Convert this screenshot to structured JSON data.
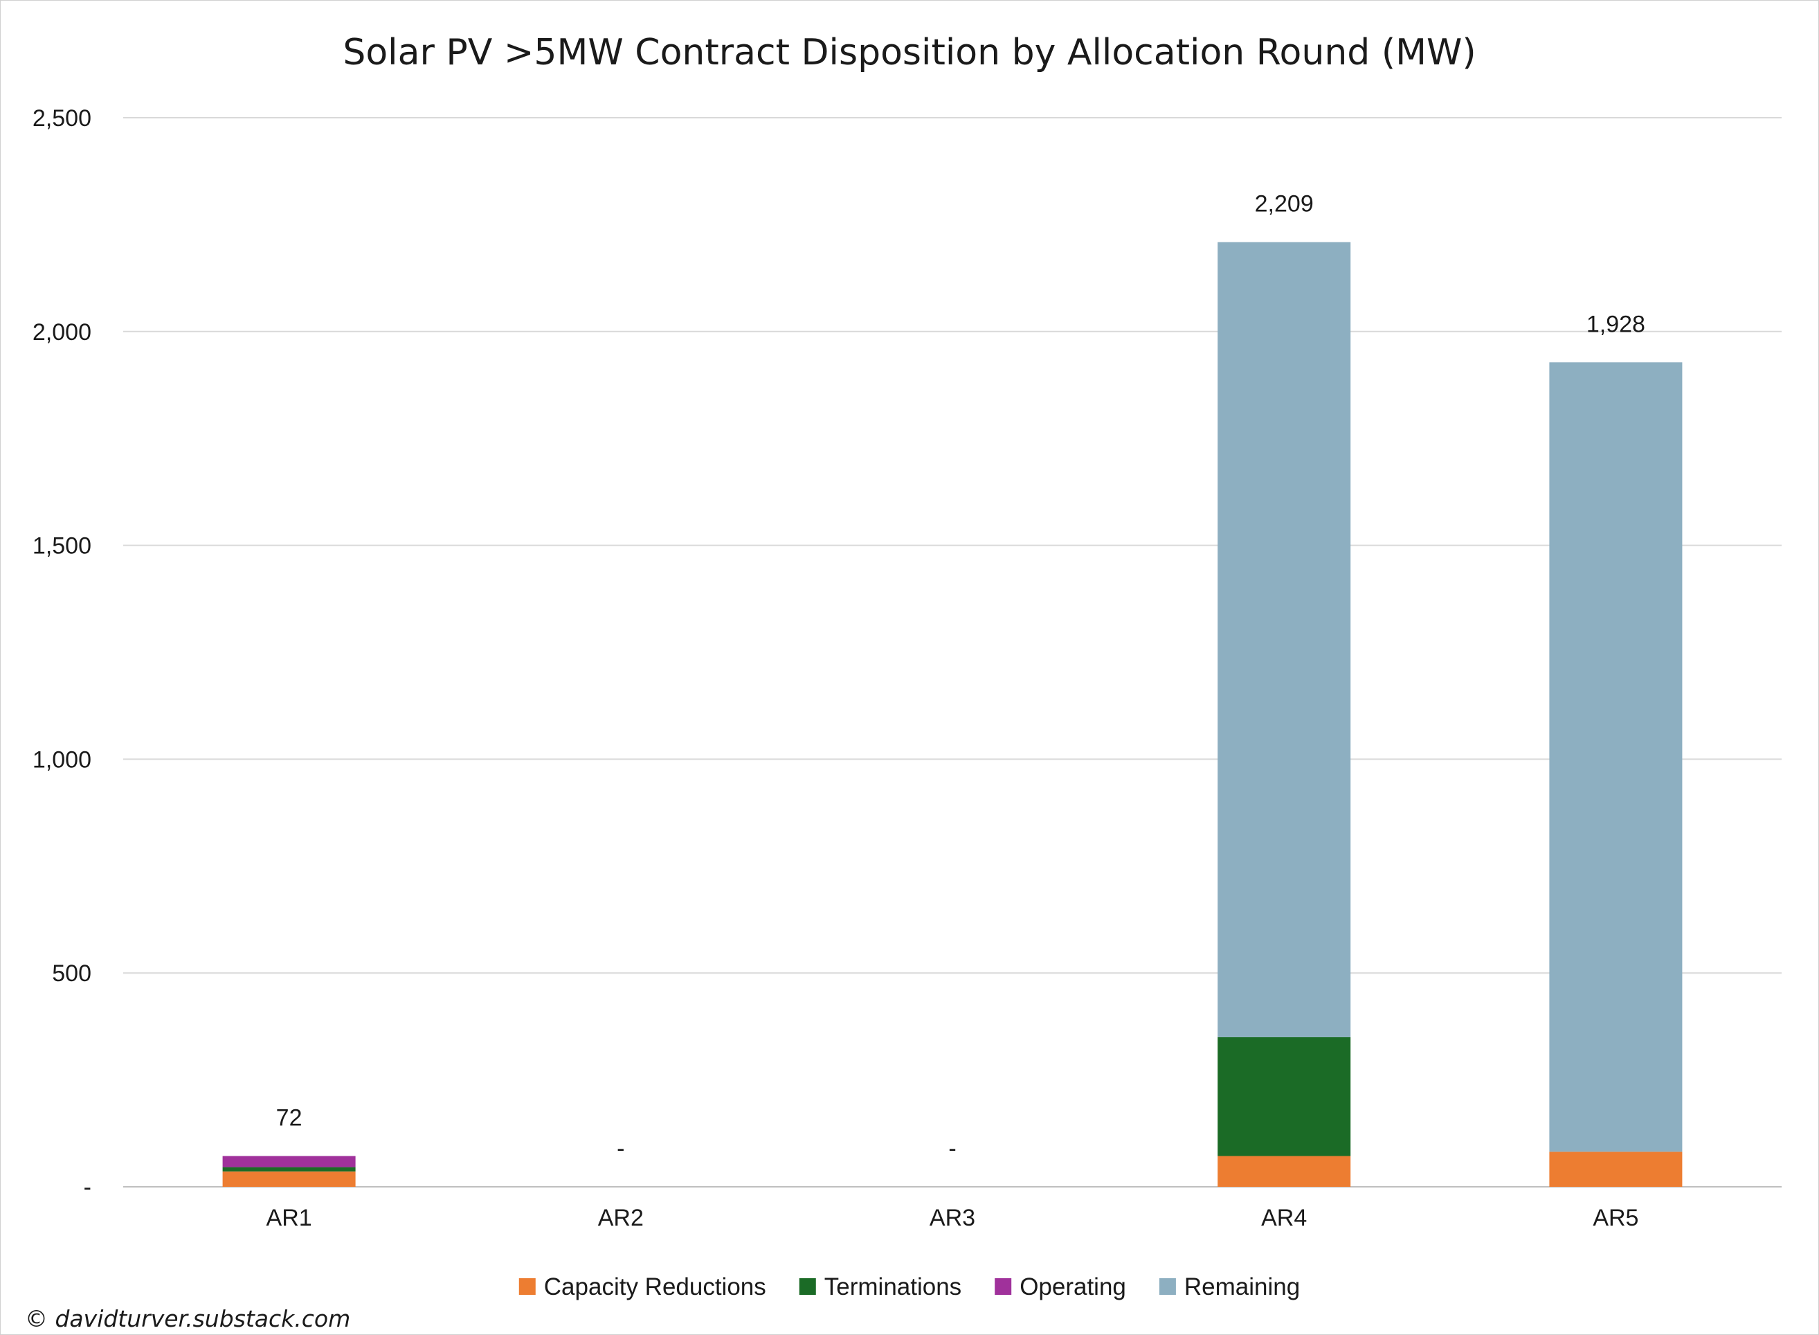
{
  "chart_data": {
    "type": "bar",
    "stacked": true,
    "title": "Solar PV >5MW Contract Disposition by Allocation Round (MW)",
    "categories": [
      "AR1",
      "AR2",
      "AR3",
      "AR4",
      "AR5"
    ],
    "series": [
      {
        "name": "Capacity Reductions",
        "color": "#ED7D31",
        "values": [
          36,
          0,
          0,
          72,
          82
        ]
      },
      {
        "name": "Terminations",
        "color": "#1B6B26",
        "values": [
          10,
          0,
          0,
          278,
          0
        ]
      },
      {
        "name": "Operating",
        "color": "#A0319B",
        "values": [
          26,
          0,
          0,
          0,
          0
        ]
      },
      {
        "name": "Remaining",
        "color": "#8DAFC1",
        "values": [
          0,
          0,
          0,
          1859,
          1846
        ]
      }
    ],
    "total_labels": [
      "72",
      "-",
      "-",
      "2,209",
      "1,928"
    ],
    "ylim": [
      0,
      2500
    ],
    "yticks": [
      0,
      500,
      1000,
      1500,
      2000,
      2500
    ],
    "ytick_labels": [
      "-",
      "500",
      "1,000",
      "1,500",
      "2,000",
      "2,500"
    ],
    "grid": true,
    "legend_position": "bottom",
    "credit": "© davidturver.substack.com"
  }
}
